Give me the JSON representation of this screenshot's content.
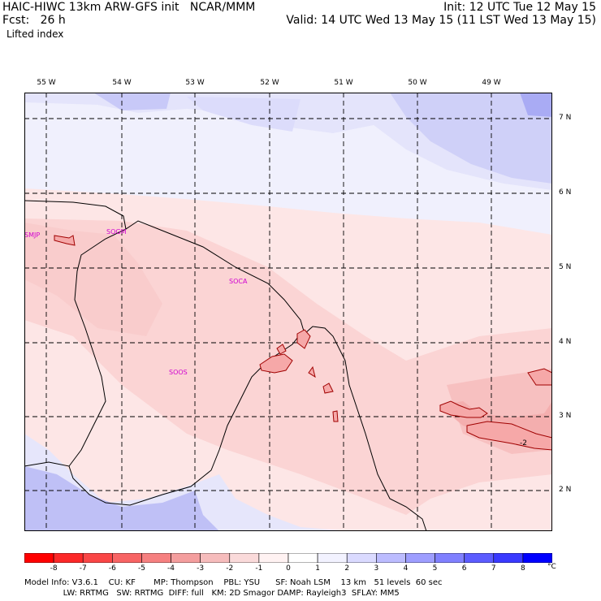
{
  "header": {
    "left_line1": "HAIC-HIWC 13km ARW-GFS init   NCAR/MMM",
    "left_line2": "Fcst:   26 h",
    "right_line1": "Init: 12 UTC Tue 12 May 15",
    "right_line2": "Valid: 14 UTC Wed 13 May 15 (11 LST Wed 13 May 15)",
    "field": "Lifted index"
  },
  "longitudes": [
    "55 W",
    "54 W",
    "53 W",
    "52 W",
    "51 W",
    "50 W",
    "49 W"
  ],
  "latitudes": [
    "7 N",
    "6 N",
    "5 N",
    "4 N",
    "3 N",
    "2 N"
  ],
  "stations": [
    "SMJP",
    "SOGM",
    "SOCA",
    "SOOS"
  ],
  "contour_label": "-2",
  "colorbar": {
    "labels": [
      "-8",
      "-7",
      "-6",
      "-5",
      "-4",
      "-3",
      "-2",
      "-1",
      "0",
      "1",
      "2",
      "3",
      "4",
      "5",
      "6",
      "7",
      "8"
    ],
    "unit": "°C",
    "colors": [
      "#ff0000",
      "#fc2828",
      "#fa4646",
      "#f86464",
      "#f68080",
      "#f49e9e",
      "#f6bcbc",
      "#fadada",
      "#fff2f2",
      "#f2f2ff",
      "#dadaff",
      "#bcbcff",
      "#9e9eff",
      "#8080ff",
      "#5c5cff",
      "#3a3aff",
      "#0000ff"
    ]
  },
  "footer": {
    "line1": "Model Info: V3.6.1    CU: KF       MP: Thompson    PBL: YSU      SF: Noah LSM    13 km   51 levels  60 sec",
    "line2": "               LW: RRTMG   SW: RRTMG  DIFF: full   KM: 2D Smagor DAMP: Rayleigh3  SFLAY: MM5"
  }
}
